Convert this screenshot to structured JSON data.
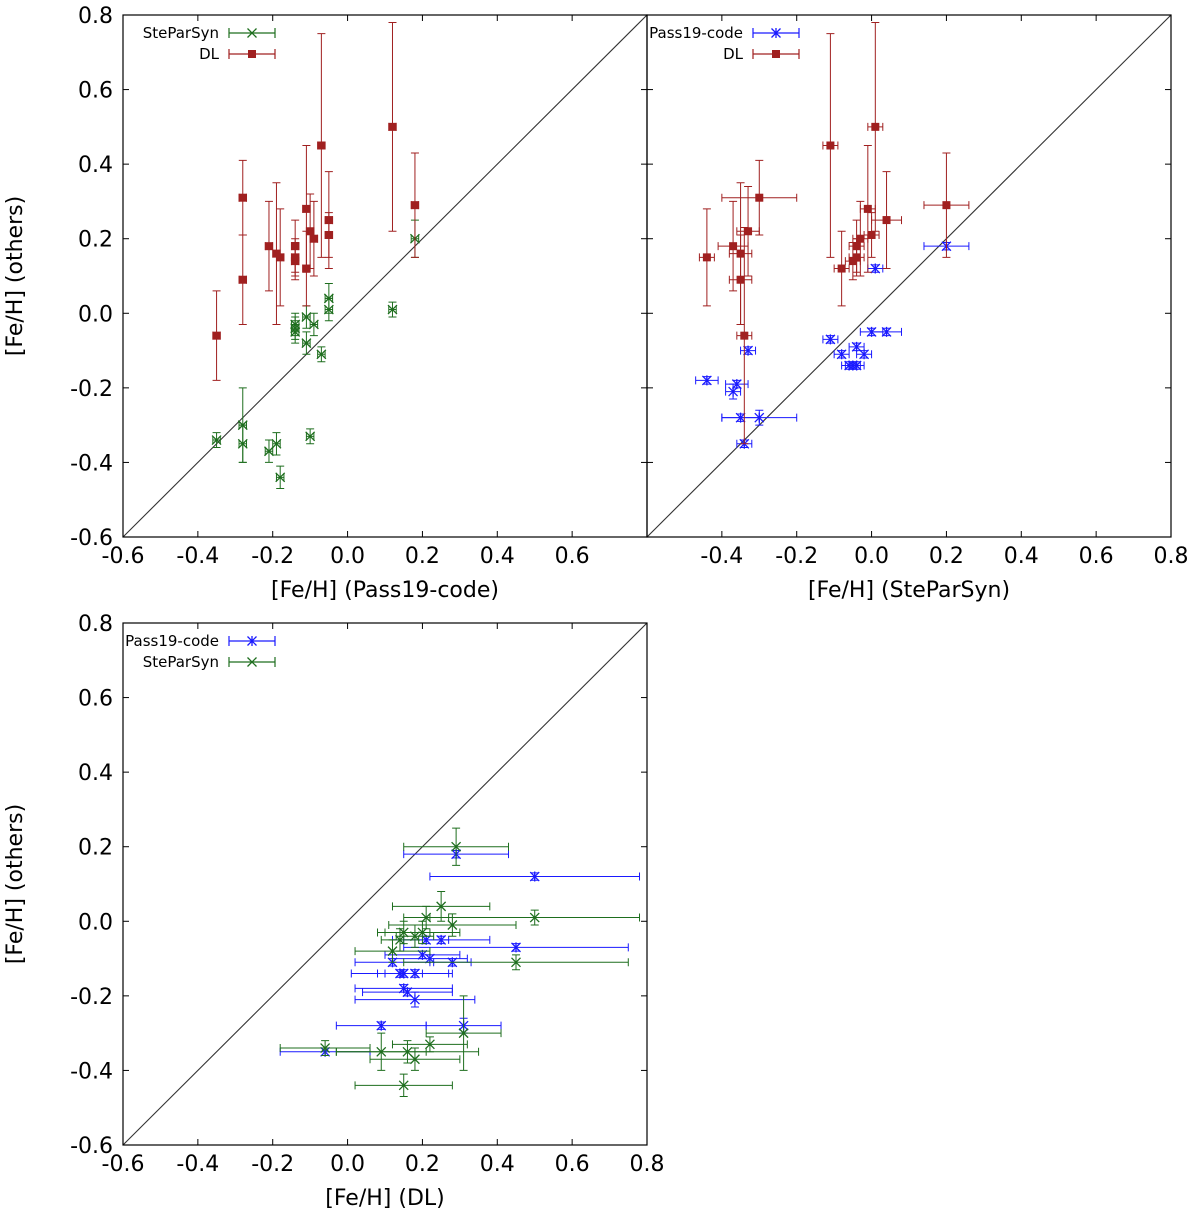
{
  "chart_data": [
    {
      "type": "scatter",
      "xlabel": "[Fe/H] (Pass19-code)",
      "ylabel": "[Fe/H] (others)",
      "xlim": [
        -0.6,
        0.8
      ],
      "ylim": [
        -0.6,
        0.8
      ],
      "xticks": [
        -0.6,
        -0.4,
        -0.2,
        0.0,
        0.2,
        0.4,
        0.6
      ],
      "yticks": [
        -0.6,
        -0.4,
        -0.2,
        0.0,
        0.2,
        0.4,
        0.6,
        0.8
      ],
      "xtick_labels": [
        "-0.6",
        "-0.4",
        "-0.2",
        "0.0",
        "0.2",
        "0.4",
        "0.6"
      ],
      "ytick_labels": [
        "-0.6",
        "-0.4",
        "-0.2",
        "0.0",
        "0.2",
        "0.4",
        "0.6",
        "0.8"
      ],
      "diagonal": true,
      "legend_position": "top-left",
      "series": [
        {
          "name": "SteParSyn",
          "color": "#1e6e1e",
          "marker": "x",
          "points": [
            {
              "x": -0.35,
              "y": -0.34,
              "xerr": 0.01,
              "yerr": 0.02
            },
            {
              "x": -0.28,
              "y": -0.3,
              "xerr": 0.01,
              "yerr": 0.1
            },
            {
              "x": -0.28,
              "y": -0.35,
              "xerr": 0.01,
              "yerr": 0.05
            },
            {
              "x": -0.21,
              "y": -0.37,
              "xerr": 0.01,
              "yerr": 0.03
            },
            {
              "x": -0.19,
              "y": -0.35,
              "xerr": 0.01,
              "yerr": 0.03
            },
            {
              "x": -0.18,
              "y": -0.44,
              "xerr": 0.01,
              "yerr": 0.03
            },
            {
              "x": -0.14,
              "y": -0.03,
              "xerr": 0.01,
              "yerr": 0.03
            },
            {
              "x": -0.14,
              "y": -0.04,
              "xerr": 0.01,
              "yerr": 0.03
            },
            {
              "x": -0.14,
              "y": -0.05,
              "xerr": 0.01,
              "yerr": 0.03
            },
            {
              "x": -0.11,
              "y": -0.01,
              "xerr": 0.01,
              "yerr": 0.03
            },
            {
              "x": -0.11,
              "y": -0.08,
              "xerr": 0.01,
              "yerr": 0.03
            },
            {
              "x": -0.1,
              "y": -0.33,
              "xerr": 0.01,
              "yerr": 0.02
            },
            {
              "x": -0.09,
              "y": -0.03,
              "xerr": 0.01,
              "yerr": 0.03
            },
            {
              "x": -0.07,
              "y": -0.11,
              "xerr": 0.01,
              "yerr": 0.02
            },
            {
              "x": -0.05,
              "y": 0.04,
              "xerr": 0.01,
              "yerr": 0.04
            },
            {
              "x": -0.05,
              "y": 0.01,
              "xerr": 0.01,
              "yerr": 0.03
            },
            {
              "x": 0.12,
              "y": 0.01,
              "xerr": 0.01,
              "yerr": 0.02
            },
            {
              "x": 0.18,
              "y": 0.2,
              "xerr": 0.01,
              "yerr": 0.05
            }
          ]
        },
        {
          "name": "DL",
          "color": "#a02020",
          "marker": "square",
          "points": [
            {
              "x": -0.35,
              "y": -0.06,
              "xerr": 0.01,
              "yerr": 0.12
            },
            {
              "x": -0.28,
              "y": 0.31,
              "xerr": 0.01,
              "yerr": 0.1
            },
            {
              "x": -0.28,
              "y": 0.09,
              "xerr": 0.01,
              "yerr": 0.12
            },
            {
              "x": -0.21,
              "y": 0.18,
              "xerr": 0.01,
              "yerr": 0.12
            },
            {
              "x": -0.19,
              "y": 0.16,
              "xerr": 0.01,
              "yerr": 0.19
            },
            {
              "x": -0.18,
              "y": 0.15,
              "xerr": 0.01,
              "yerr": 0.13
            },
            {
              "x": -0.14,
              "y": 0.18,
              "xerr": 0.01,
              "yerr": 0.07
            },
            {
              "x": -0.14,
              "y": 0.15,
              "xerr": 0.01,
              "yerr": 0.05
            },
            {
              "x": -0.14,
              "y": 0.14,
              "xerr": 0.01,
              "yerr": 0.05
            },
            {
              "x": -0.11,
              "y": 0.28,
              "xerr": 0.01,
              "yerr": 0.17
            },
            {
              "x": -0.11,
              "y": 0.12,
              "xerr": 0.01,
              "yerr": 0.1
            },
            {
              "x": -0.1,
              "y": 0.22,
              "xerr": 0.01,
              "yerr": 0.1
            },
            {
              "x": -0.09,
              "y": 0.2,
              "xerr": 0.01,
              "yerr": 0.1
            },
            {
              "x": -0.07,
              "y": 0.45,
              "xerr": 0.01,
              "yerr": 0.3
            },
            {
              "x": -0.05,
              "y": 0.25,
              "xerr": 0.01,
              "yerr": 0.13
            },
            {
              "x": -0.05,
              "y": 0.21,
              "xerr": 0.01,
              "yerr": 0.06
            },
            {
              "x": 0.12,
              "y": 0.5,
              "xerr": 0.01,
              "yerr": 0.28
            },
            {
              "x": 0.18,
              "y": 0.29,
              "xerr": 0.01,
              "yerr": 0.14
            }
          ]
        }
      ]
    },
    {
      "type": "scatter",
      "xlabel": "[Fe/H] (SteParSyn)",
      "ylabel": "",
      "xlim": [
        -0.6,
        0.8
      ],
      "ylim": [
        -0.6,
        0.8
      ],
      "xticks": [
        -0.4,
        -0.2,
        0.0,
        0.2,
        0.4,
        0.6,
        0.8
      ],
      "yticks": [],
      "xtick_labels": [
        "-0.4",
        "-0.2",
        "0.0",
        "0.2",
        "0.4",
        "0.6",
        "0.8"
      ],
      "ytick_labels": [],
      "ytick_marks": [
        -0.6,
        -0.4,
        -0.2,
        0.0,
        0.2,
        0.4,
        0.6,
        0.8
      ],
      "diagonal": true,
      "legend_position": "top-left",
      "series": [
        {
          "name": "Pass19-code",
          "color": "#1a1aff",
          "marker": "star",
          "points": [
            {
              "x": -0.44,
              "y": -0.18,
              "xerr": 0.03,
              "yerr": 0.01
            },
            {
              "x": -0.37,
              "y": -0.21,
              "xerr": 0.02,
              "yerr": 0.02
            },
            {
              "x": -0.36,
              "y": -0.19,
              "xerr": 0.03,
              "yerr": 0.01
            },
            {
              "x": -0.35,
              "y": -0.28,
              "xerr": 0.05,
              "yerr": 0.01
            },
            {
              "x": -0.34,
              "y": -0.35,
              "xerr": 0.02,
              "yerr": 0.01
            },
            {
              "x": -0.33,
              "y": -0.1,
              "xerr": 0.02,
              "yerr": 0.01
            },
            {
              "x": -0.3,
              "y": -0.28,
              "xerr": 0.1,
              "yerr": 0.02
            },
            {
              "x": -0.11,
              "y": -0.07,
              "xerr": 0.02,
              "yerr": 0.01
            },
            {
              "x": -0.08,
              "y": -0.11,
              "xerr": 0.02,
              "yerr": 0.01
            },
            {
              "x": -0.06,
              "y": -0.14,
              "xerr": 0.02,
              "yerr": 0.01
            },
            {
              "x": -0.05,
              "y": -0.14,
              "xerr": 0.02,
              "yerr": 0.01
            },
            {
              "x": -0.04,
              "y": -0.14,
              "xerr": 0.02,
              "yerr": 0.01
            },
            {
              "x": -0.04,
              "y": -0.09,
              "xerr": 0.02,
              "yerr": 0.01
            },
            {
              "x": -0.02,
              "y": -0.11,
              "xerr": 0.02,
              "yerr": 0.01
            },
            {
              "x": 0.0,
              "y": -0.05,
              "xerr": 0.03,
              "yerr": 0.01
            },
            {
              "x": 0.01,
              "y": 0.12,
              "xerr": 0.02,
              "yerr": 0.01
            },
            {
              "x": 0.04,
              "y": -0.05,
              "xerr": 0.04,
              "yerr": 0.01
            },
            {
              "x": 0.2,
              "y": 0.18,
              "xerr": 0.06,
              "yerr": 0.01
            }
          ]
        },
        {
          "name": "DL",
          "color": "#a02020",
          "marker": "square",
          "points": [
            {
              "x": -0.44,
              "y": 0.15,
              "xerr": 0.02,
              "yerr": 0.13
            },
            {
              "x": -0.37,
              "y": 0.18,
              "xerr": 0.04,
              "yerr": 0.12
            },
            {
              "x": -0.35,
              "y": 0.16,
              "xerr": 0.03,
              "yerr": 0.19
            },
            {
              "x": -0.35,
              "y": 0.09,
              "xerr": 0.03,
              "yerr": 0.12
            },
            {
              "x": -0.34,
              "y": -0.06,
              "xerr": 0.02,
              "yerr": 0.29
            },
            {
              "x": -0.33,
              "y": 0.22,
              "xerr": 0.03,
              "yerr": 0.12
            },
            {
              "x": -0.3,
              "y": 0.31,
              "xerr": 0.1,
              "yerr": 0.1
            },
            {
              "x": -0.11,
              "y": 0.45,
              "xerr": 0.02,
              "yerr": 0.3
            },
            {
              "x": -0.08,
              "y": 0.12,
              "xerr": 0.02,
              "yerr": 0.1
            },
            {
              "x": -0.05,
              "y": 0.14,
              "xerr": 0.02,
              "yerr": 0.05
            },
            {
              "x": -0.04,
              "y": 0.18,
              "xerr": 0.02,
              "yerr": 0.07
            },
            {
              "x": -0.04,
              "y": 0.15,
              "xerr": 0.02,
              "yerr": 0.05
            },
            {
              "x": -0.03,
              "y": 0.2,
              "xerr": 0.02,
              "yerr": 0.1
            },
            {
              "x": -0.01,
              "y": 0.28,
              "xerr": 0.02,
              "yerr": 0.17
            },
            {
              "x": 0.0,
              "y": 0.21,
              "xerr": 0.02,
              "yerr": 0.06
            },
            {
              "x": 0.01,
              "y": 0.5,
              "xerr": 0.02,
              "yerr": 0.28
            },
            {
              "x": 0.04,
              "y": 0.25,
              "xerr": 0.04,
              "yerr": 0.13
            },
            {
              "x": 0.2,
              "y": 0.29,
              "xerr": 0.06,
              "yerr": 0.14
            }
          ]
        }
      ]
    },
    {
      "type": "scatter",
      "xlabel": "[Fe/H] (DL)",
      "ylabel": "[Fe/H] (others)",
      "xlim": [
        -0.6,
        0.8
      ],
      "ylim": [
        -0.6,
        0.8
      ],
      "xticks": [
        -0.6,
        -0.4,
        -0.2,
        0.0,
        0.2,
        0.4,
        0.6,
        0.8
      ],
      "yticks": [
        -0.6,
        -0.4,
        -0.2,
        0.0,
        0.2,
        0.4,
        0.6,
        0.8
      ],
      "xtick_labels": [
        "-0.6",
        "-0.4",
        "-0.2",
        "0.0",
        "0.2",
        "0.4",
        "0.6",
        "0.8"
      ],
      "ytick_labels": [
        "-0.6",
        "-0.4",
        "-0.2",
        "0.0",
        "0.2",
        "0.4",
        "0.6",
        "0.8"
      ],
      "diagonal": true,
      "legend_position": "top-left",
      "series": [
        {
          "name": "Pass19-code",
          "color": "#1a1aff",
          "marker": "star",
          "points": [
            {
              "x": -0.06,
              "y": -0.35,
              "xerr": 0.12,
              "yerr": 0.01
            },
            {
              "x": 0.09,
              "y": -0.28,
              "xerr": 0.12,
              "yerr": 0.01
            },
            {
              "x": 0.31,
              "y": -0.28,
              "xerr": 0.1,
              "yerr": 0.02
            },
            {
              "x": 0.12,
              "y": -0.11,
              "xerr": 0.1,
              "yerr": 0.01
            },
            {
              "x": 0.15,
              "y": -0.18,
              "xerr": 0.13,
              "yerr": 0.01
            },
            {
              "x": 0.16,
              "y": -0.19,
              "xerr": 0.12,
              "yerr": 0.01
            },
            {
              "x": 0.18,
              "y": -0.21,
              "xerr": 0.16,
              "yerr": 0.02
            },
            {
              "x": 0.14,
              "y": -0.14,
              "xerr": 0.13,
              "yerr": 0.01
            },
            {
              "x": 0.15,
              "y": -0.14,
              "xerr": 0.05,
              "yerr": 0.01
            },
            {
              "x": 0.18,
              "y": -0.14,
              "xerr": 0.1,
              "yerr": 0.01
            },
            {
              "x": 0.2,
              "y": -0.09,
              "xerr": 0.1,
              "yerr": 0.01
            },
            {
              "x": 0.22,
              "y": -0.1,
              "xerr": 0.1,
              "yerr": 0.01
            },
            {
              "x": 0.21,
              "y": -0.05,
              "xerr": 0.06,
              "yerr": 0.01
            },
            {
              "x": 0.25,
              "y": -0.05,
              "xerr": 0.13,
              "yerr": 0.01
            },
            {
              "x": 0.28,
              "y": -0.11,
              "xerr": 0.05,
              "yerr": 0.01
            },
            {
              "x": 0.29,
              "y": 0.18,
              "xerr": 0.14,
              "yerr": 0.01
            },
            {
              "x": 0.45,
              "y": -0.07,
              "xerr": 0.3,
              "yerr": 0.01
            },
            {
              "x": 0.5,
              "y": 0.12,
              "xerr": 0.28,
              "yerr": 0.01
            }
          ]
        },
        {
          "name": "SteParSyn",
          "color": "#1e6e1e",
          "marker": "x",
          "points": [
            {
              "x": -0.06,
              "y": -0.34,
              "xerr": 0.12,
              "yerr": 0.02
            },
            {
              "x": 0.09,
              "y": -0.35,
              "xerr": 0.12,
              "yerr": 0.05
            },
            {
              "x": 0.31,
              "y": -0.3,
              "xerr": 0.1,
              "yerr": 0.1
            },
            {
              "x": 0.15,
              "y": -0.44,
              "xerr": 0.13,
              "yerr": 0.03
            },
            {
              "x": 0.16,
              "y": -0.35,
              "xerr": 0.19,
              "yerr": 0.03
            },
            {
              "x": 0.18,
              "y": -0.37,
              "xerr": 0.12,
              "yerr": 0.03
            },
            {
              "x": 0.22,
              "y": -0.33,
              "xerr": 0.1,
              "yerr": 0.02
            },
            {
              "x": 0.12,
              "y": -0.08,
              "xerr": 0.1,
              "yerr": 0.03
            },
            {
              "x": 0.14,
              "y": -0.05,
              "xerr": 0.05,
              "yerr": 0.03
            },
            {
              "x": 0.15,
              "y": -0.03,
              "xerr": 0.07,
              "yerr": 0.03
            },
            {
              "x": 0.18,
              "y": -0.04,
              "xerr": 0.05,
              "yerr": 0.03
            },
            {
              "x": 0.2,
              "y": -0.03,
              "xerr": 0.1,
              "yerr": 0.03
            },
            {
              "x": 0.21,
              "y": 0.01,
              "xerr": 0.06,
              "yerr": 0.03
            },
            {
              "x": 0.25,
              "y": 0.04,
              "xerr": 0.13,
              "yerr": 0.04
            },
            {
              "x": 0.28,
              "y": -0.01,
              "xerr": 0.17,
              "yerr": 0.03
            },
            {
              "x": 0.29,
              "y": 0.2,
              "xerr": 0.14,
              "yerr": 0.05
            },
            {
              "x": 0.45,
              "y": -0.11,
              "xerr": 0.3,
              "yerr": 0.02
            },
            {
              "x": 0.5,
              "y": 0.01,
              "xerr": 0.28,
              "yerr": 0.02
            }
          ]
        }
      ]
    }
  ]
}
